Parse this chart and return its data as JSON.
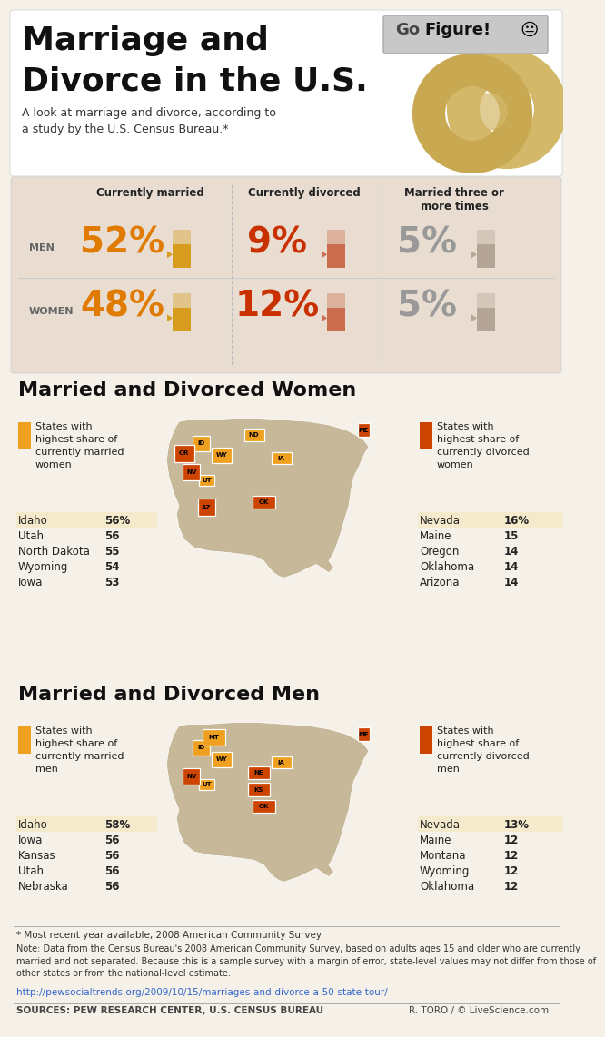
{
  "title_line1": "Marriage and",
  "title_line2": "Divorce in the U.S.",
  "subtitle": "A look at marriage and divorce, according to\na study by the U.S. Census Bureau.*",
  "bg_color": "#f5f0e8",
  "stats_bg": "#e8ddd0",
  "white_bg": "#ffffff",
  "stats_headers": [
    "Currently married",
    "Currently divorced",
    "Married three or\nmore times"
  ],
  "men_values": [
    "52%",
    "9%",
    "5%"
  ],
  "women_values": [
    "48%",
    "12%",
    "5%"
  ],
  "men_big_colors": [
    "#e07a00",
    "#c83000",
    "#999999"
  ],
  "women_big_colors": [
    "#e07a00",
    "#c83000",
    "#999999"
  ],
  "bar_colors_men": [
    "#d4960a",
    "#c86040",
    "#b0a090"
  ],
  "bar_colors_women": [
    "#d4960a",
    "#c86040",
    "#b0a090"
  ],
  "women_section_title": "Married and Divorced Women",
  "women_married_title": "States with\nhighest share of\ncurrently married\nwomen",
  "women_divorced_title": "States with\nhighest share of\ncurrently divorced\nwomen",
  "women_married_states": [
    [
      "Idaho",
      "56%"
    ],
    [
      "Utah",
      "56"
    ],
    [
      "North Dakota",
      "55"
    ],
    [
      "Wyoming",
      "54"
    ],
    [
      "Iowa",
      "53"
    ]
  ],
  "women_divorced_states": [
    [
      "Nevada",
      "16%"
    ],
    [
      "Maine",
      "15"
    ],
    [
      "Oregon",
      "14"
    ],
    [
      "Oklahoma",
      "14"
    ],
    [
      "Arizona",
      "14"
    ]
  ],
  "men_section_title": "Married and Divorced Men",
  "men_married_title": "States with\nhighest share of\ncurrently married\nmen",
  "men_divorced_title": "States with\nhighest share of\ncurrently divorced\nmen",
  "men_married_states": [
    [
      "Idaho",
      "58%"
    ],
    [
      "Iowa",
      "56"
    ],
    [
      "Kansas",
      "56"
    ],
    [
      "Utah",
      "56"
    ],
    [
      "Nebraska",
      "56"
    ]
  ],
  "men_divorced_states": [
    [
      "Nevada",
      "13%"
    ],
    [
      "Maine",
      "12"
    ],
    [
      "Montana",
      "12"
    ],
    [
      "Wyoming",
      "12"
    ],
    [
      "Oklahoma",
      "12"
    ]
  ],
  "orange_light": "#f0a020",
  "orange_dark": "#cc4400",
  "map_base": "#c8b89a",
  "table_hi_bg": "#f5e8c0",
  "footer1": "* Most recent year available, 2008 American Community Survey",
  "footer2": "Note: Data from the Census Bureau's 2008 American Community Survey, based on adults ages 15 and older who are currently\nmarried and not separated. Because this is a sample survey with a margin of error, state-level values may not differ from those of\nother states or from the national-level estimate.",
  "footer3": "http://pewsocialtrends.org/2009/10/15/marriages-and-divorce-a-50-state-tour/",
  "footer4": "SOURCES: PEW RESEARCH CENTER, U.S. CENSUS BUREAU",
  "footer5": "R. TORO / © LiveScience.com"
}
